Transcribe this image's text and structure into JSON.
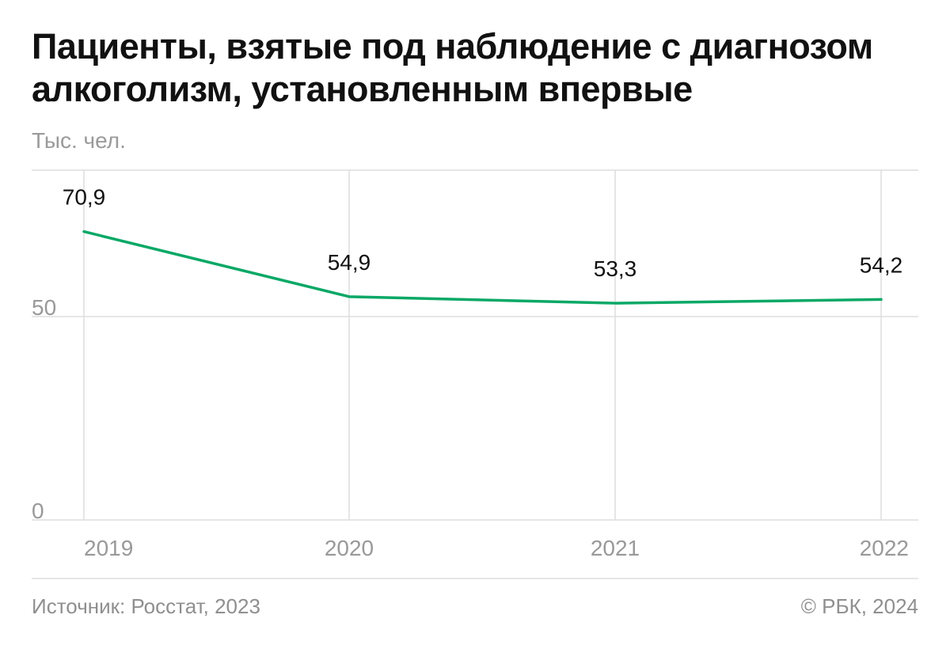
{
  "title": "Пациенты, взятые под наблюдение с диагнозом алкоголизм, установленным впервые",
  "unit": "Тыс. чел.",
  "source": "Источник: Росстат, 2023",
  "copyright": "© РБК, 2024",
  "colors": {
    "line": "#0aa866",
    "grid": "#dddddd",
    "axis_text": "#999999",
    "label_text": "#111111"
  },
  "chart_data": {
    "type": "line",
    "title": "Пациенты, взятые под наблюдение с диагнозом алкоголизм, установленным впервые",
    "ylabel": "Тыс. чел.",
    "xlabel": "",
    "categories": [
      "2019",
      "2020",
      "2021",
      "2022"
    ],
    "series": [
      {
        "name": "Пациенты",
        "values": [
          70.9,
          54.9,
          53.3,
          54.2
        ],
        "labels": [
          "70,9",
          "54,9",
          "53,3",
          "54,2"
        ]
      }
    ],
    "y_ticks": [
      0,
      50
    ],
    "ylim": [
      0,
      86
    ],
    "grid": true
  }
}
